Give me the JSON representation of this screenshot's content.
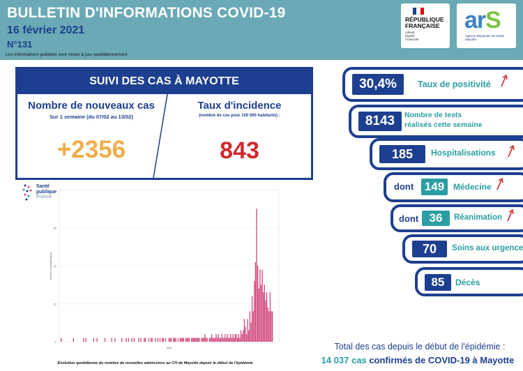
{
  "header": {
    "title": "BULLETIN D'INFORMATIONS COVID-19",
    "date": "16 février 2021",
    "number": "N°131",
    "note": "Les informations publiées sont mises à jour quotidiennement"
  },
  "logos": {
    "rf_line1": "RÉPUBLIQUE",
    "rf_line2": "FRANÇAISE",
    "rf_motto1": "Liberté",
    "rf_motto2": "Égalité",
    "rf_motto3": "Fraternité",
    "ars_a": "ar",
    "ars_s": "S",
    "ars_sub1": "Agence Régionale de Santé",
    "ars_sub2": "Mayotte",
    "spf_line1": "Santé",
    "spf_line2": "publique",
    "spf_line3": "France"
  },
  "suivi": {
    "heading": "SUIVI DES CAS À MAYOTTE",
    "new_cases_title": "Nombre de nouveaux cas",
    "new_cases_sub": "Sur 1 semaine (du 07/02 au 13/02)",
    "new_cases_value": "+2356",
    "incidence_title": "Taux d'incidence",
    "incidence_sub": "(nombre de cas pour 100 000 habitants) :",
    "incidence_value": "843"
  },
  "chart_data": {
    "type": "bar",
    "title": "",
    "caption": "Évolution quotidienne du nombre de nouvelles admissions au CH de Mayotte depuis le début de l'épidémie",
    "ylabel": "Nombre d'hospitalisations",
    "xlabel": "Date",
    "ylim": [
      0,
      40
    ],
    "yticks": [
      0,
      10,
      20,
      30
    ],
    "color": "#d1457a",
    "values": [
      1,
      0,
      0,
      0,
      0,
      0,
      0,
      0,
      0,
      0,
      0,
      1,
      0,
      0,
      0,
      0,
      0,
      0,
      0,
      0,
      1,
      0,
      1,
      0,
      0,
      0,
      0,
      0,
      0,
      1,
      0,
      0,
      1,
      0,
      0,
      0,
      0,
      0,
      0,
      1,
      0,
      0,
      0,
      0,
      0,
      1,
      0,
      0,
      1,
      0,
      0,
      0,
      0,
      0,
      1,
      0,
      0,
      0,
      1,
      0,
      1,
      0,
      0,
      1,
      0,
      1,
      0,
      0,
      0,
      1,
      0,
      1,
      0,
      0,
      1,
      1,
      0,
      0,
      1,
      0,
      1,
      1,
      0,
      0,
      1,
      0,
      1,
      0,
      1,
      0,
      1,
      1,
      0,
      1,
      0,
      0,
      1,
      1,
      1,
      0,
      1,
      1,
      1,
      0,
      1,
      0,
      1,
      1,
      1,
      1,
      0,
      1,
      1,
      1,
      1,
      0,
      1,
      1,
      1,
      1,
      1,
      1,
      1,
      1,
      0,
      1,
      1,
      1,
      2,
      1,
      1,
      0,
      1,
      1,
      2,
      1,
      1,
      1,
      2,
      1,
      2,
      1,
      1,
      2,
      1,
      1,
      2,
      1,
      2,
      1,
      1,
      2,
      1,
      2,
      1,
      2,
      2,
      1,
      2,
      1,
      3,
      2,
      3,
      6,
      4,
      2,
      6,
      3,
      8,
      5,
      12,
      8,
      16,
      21,
      35,
      20,
      14,
      19,
      15,
      19,
      13,
      15,
      11,
      13,
      9,
      8,
      13,
      8,
      8,
      0,
      0,
      0,
      0
    ]
  },
  "stats": {
    "positivity_value": "30,4%",
    "positivity_label": "Taux de positivité",
    "tests_value": "8143",
    "tests_label1": "Nombre de tests",
    "tests_label2": "réalisés cette semaine",
    "hosp_value": "185",
    "hosp_label": "Hospitalisations",
    "dont1": "dont",
    "med_value": "149",
    "med_label": "Médecine",
    "dont2": "dont",
    "rea_value": "36",
    "rea_label": "Réanimation",
    "urg_value": "70",
    "urg_label": "Soins aux urgences",
    "deces_value": "85",
    "deces_label": "Décès"
  },
  "total": {
    "line1": "Total des cas depuis le début de l'épidémie :",
    "count": "14 037 cas",
    "rest": "confirmés de COVID-19 à Mayotte"
  },
  "colors": {
    "header_bg": "#6aa9b5",
    "navy": "#1d3f8f",
    "teal": "#2a9ea3",
    "orange": "#f1ac4a",
    "red": "#d0292e"
  }
}
